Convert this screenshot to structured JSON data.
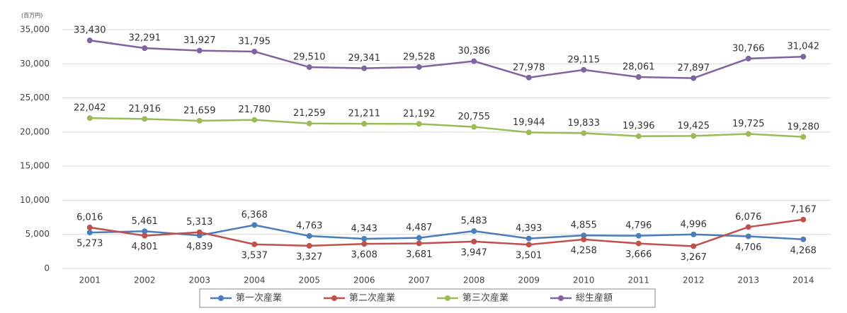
{
  "chart_data": {
    "type": "line",
    "unit_label": "(百万円)",
    "categories": [
      "2001",
      "2002",
      "2003",
      "2004",
      "2005",
      "2006",
      "2007",
      "2008",
      "2009",
      "2010",
      "2011",
      "2012",
      "2013",
      "2014"
    ],
    "series": [
      {
        "name": "第一次産業",
        "color": "#4a7ebb",
        "values": [
          5273,
          5461,
          4839,
          6368,
          4763,
          4343,
          4487,
          5483,
          4393,
          4855,
          4796,
          4996,
          4706,
          4268
        ],
        "value_labels": [
          "5,273",
          "5,461",
          "4,839",
          "6,368",
          "4,763",
          "4,343",
          "4,487",
          "5,483",
          "4,393",
          "4,855",
          "4,796",
          "4,996",
          "4,706",
          "4,268"
        ]
      },
      {
        "name": "第二次産業",
        "color": "#c0504d",
        "values": [
          6016,
          4801,
          5313,
          3537,
          3327,
          3608,
          3681,
          3947,
          3501,
          4258,
          3666,
          3267,
          6076,
          7167
        ],
        "value_labels": [
          "6,016",
          "4,801",
          "5,313",
          "3,537",
          "3,327",
          "3,608",
          "3,681",
          "3,947",
          "3,501",
          "4,258",
          "3,666",
          "3,267",
          "6,076",
          "7,167"
        ]
      },
      {
        "name": "第三次産業",
        "color": "#9bbb59",
        "values": [
          22042,
          21916,
          21659,
          21780,
          21259,
          21211,
          21192,
          20755,
          19944,
          19833,
          19396,
          19425,
          19725,
          19280
        ],
        "value_labels": [
          "22,042",
          "21,916",
          "21,659",
          "21,780",
          "21,259",
          "21,211",
          "21,192",
          "20,755",
          "19,944",
          "19,833",
          "19,396",
          "19,425",
          "19,725",
          "19,280"
        ]
      },
      {
        "name": "総生産額",
        "color": "#8064a2",
        "values": [
          33430,
          32291,
          31927,
          31795,
          29510,
          29341,
          29528,
          30386,
          27978,
          29115,
          28061,
          27897,
          30766,
          31042
        ],
        "value_labels": [
          "33,430",
          "32,291",
          "31,927",
          "31,795",
          "29,510",
          "29,341",
          "29,528",
          "30,386",
          "27,978",
          "29,115",
          "28,061",
          "27,897",
          "30,766",
          "31,042"
        ]
      }
    ],
    "ylim": [
      0,
      35000
    ],
    "yticks": [
      0,
      {
        "value": 5000,
        "label": "5,000"
      },
      {
        "value": 10000,
        "label": "10,000"
      },
      {
        "value": 15000,
        "label": "15,000"
      },
      {
        "value": 20000,
        "label": "20,000"
      },
      {
        "value": 25000,
        "label": "25,000"
      },
      {
        "value": 30000,
        "label": "30,000"
      },
      {
        "value": 35000,
        "label": "35,000"
      }
    ],
    "grid": true
  }
}
